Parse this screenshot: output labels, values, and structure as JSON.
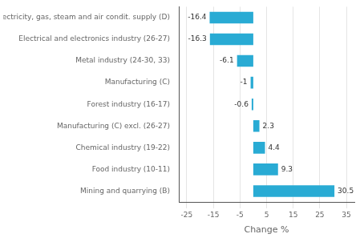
{
  "chart_data": {
    "type": "bar",
    "orientation": "horizontal",
    "categories": [
      "Electricity, gas, steam and air condit. supply (D)",
      "Electrical and electronics industry (26-27)",
      "Metal industry (24-30, 33)",
      "Manufacturing (C)",
      "Forest industry (16-17)",
      "Manufacturing (C) excl. (26-27)",
      "Chemical industry (19-22)",
      "Food industry (10-11)",
      "Mining and quarrying (B)"
    ],
    "values": [
      -16.4,
      -16.3,
      -6.1,
      -1,
      -0.6,
      2.3,
      4.4,
      9.3,
      30.5
    ],
    "color": "#29ABD4",
    "xlabel": "Change %",
    "xlim": [
      -28,
      38
    ],
    "xticks": [
      -25,
      -15,
      -5,
      5,
      15,
      25,
      35
    ],
    "grid": true,
    "data_labels": true
  }
}
